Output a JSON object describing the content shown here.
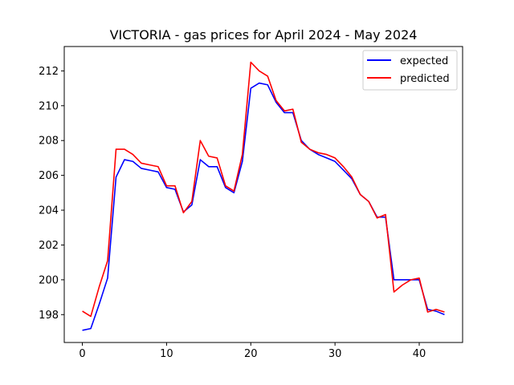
{
  "chart_data": {
    "type": "line",
    "title": "VICTORIA - gas prices for April 2024 - May 2024",
    "xlabel": "",
    "ylabel": "",
    "xlim": [
      -2.15,
      45.15
    ],
    "ylim": [
      196.4,
      213.4
    ],
    "x_ticks": [
      0,
      10,
      20,
      30,
      40
    ],
    "y_ticks": [
      198,
      200,
      202,
      204,
      206,
      208,
      210,
      212
    ],
    "grid": false,
    "legend_position": "top-right",
    "x": [
      0,
      1,
      2,
      3,
      4,
      5,
      6,
      7,
      8,
      9,
      10,
      11,
      12,
      13,
      14,
      15,
      16,
      17,
      18,
      19,
      20,
      21,
      22,
      23,
      24,
      25,
      26,
      27,
      28,
      29,
      30,
      31,
      32,
      33,
      34,
      35,
      36,
      37,
      38,
      39,
      40,
      41,
      42,
      43
    ],
    "series": [
      {
        "name": "expected",
        "color": "#0000ff",
        "values": [
          197.1,
          197.2,
          198.6,
          200.1,
          205.9,
          206.9,
          206.8,
          206.4,
          206.3,
          206.2,
          205.3,
          205.2,
          203.9,
          204.3,
          206.9,
          206.5,
          206.5,
          205.3,
          205.0,
          206.8,
          211.0,
          211.3,
          211.2,
          210.2,
          209.6,
          209.6,
          208.0,
          207.5,
          207.2,
          207.0,
          206.8,
          206.3,
          205.8,
          204.9,
          204.5,
          203.6,
          203.6,
          200.0,
          200.0,
          200.0,
          200.0,
          198.3,
          198.2,
          198.0
        ]
      },
      {
        "name": "predicted",
        "color": "#ff0000",
        "values": [
          198.2,
          197.9,
          199.6,
          201.1,
          207.5,
          207.5,
          207.2,
          206.7,
          206.6,
          206.5,
          205.4,
          205.4,
          203.85,
          204.5,
          208.0,
          207.1,
          207.0,
          205.4,
          205.1,
          207.2,
          212.5,
          212.0,
          211.7,
          210.3,
          209.7,
          209.8,
          207.9,
          207.5,
          207.3,
          207.2,
          207.0,
          206.5,
          205.9,
          204.9,
          204.5,
          203.55,
          203.75,
          199.3,
          199.7,
          200.0,
          200.1,
          198.15,
          198.3,
          198.15
        ]
      }
    ]
  }
}
